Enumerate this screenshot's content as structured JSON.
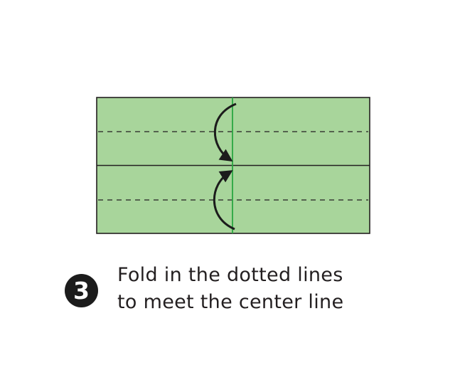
{
  "step": {
    "number": "3",
    "instruction_lines": [
      "Fold in the dotted lines",
      "to meet the center line"
    ]
  },
  "colors": {
    "paper_fill": "#a8d59b",
    "outline": "#231f20",
    "center_line": "#2aa641",
    "arrow": "#1c1c1c",
    "badge": "#1c1c1c"
  }
}
